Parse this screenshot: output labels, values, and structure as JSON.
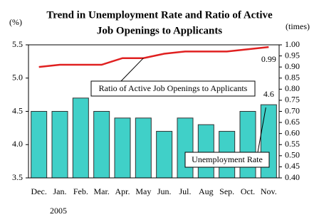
{
  "chart_data": {
    "type": "bar_line",
    "title": [
      "Trend in Unemployment Rate and Ratio of Active",
      "Job Openings to Applicants"
    ],
    "y_unit": "(%)",
    "y2_unit": "(times)",
    "year": "2005",
    "categories": [
      "Dec.",
      "Jan.",
      "Feb.",
      "Mar.",
      "Apr.",
      "May",
      "Jun.",
      "Jul.",
      "Aug",
      "Sep.",
      "Oct.",
      "Nov."
    ],
    "series": [
      {
        "name": "Unemployment Rate",
        "type": "bar",
        "color": "#40d0c8",
        "values": [
          4.5,
          4.5,
          4.7,
          4.5,
          4.4,
          4.4,
          4.2,
          4.4,
          4.3,
          4.2,
          4.5,
          4.6
        ]
      },
      {
        "name": "Ratio of Active Job Openings to Applicants",
        "type": "line",
        "axis": "y2",
        "color": "#e02020",
        "values": [
          0.9,
          0.91,
          0.91,
          0.91,
          0.94,
          0.94,
          0.96,
          0.97,
          0.97,
          0.97,
          0.98,
          0.99
        ]
      }
    ],
    "ylim": [
      3.5,
      5.5
    ],
    "yticks": [
      3.5,
      {
        "value": 4,
        "label": "4.0"
      },
      4.5,
      {
        "value": 5,
        "label": "5.0"
      },
      5.5
    ],
    "y2lim": [
      0.4,
      1.0
    ],
    "y2ticks": [
      {
        "value": 0.4,
        "label": "0.40"
      },
      0.45,
      {
        "value": 0.5,
        "label": "0.50"
      },
      0.55,
      {
        "value": 0.6,
        "label": "0.60"
      },
      0.65,
      {
        "value": 0.7,
        "label": "0.70"
      },
      0.75,
      {
        "value": 0.8,
        "label": "0.80"
      },
      0.85,
      {
        "value": 0.9,
        "label": "0.90"
      },
      0.95,
      {
        "value": 1.0,
        "label": "1.00"
      }
    ],
    "grid": false
  }
}
